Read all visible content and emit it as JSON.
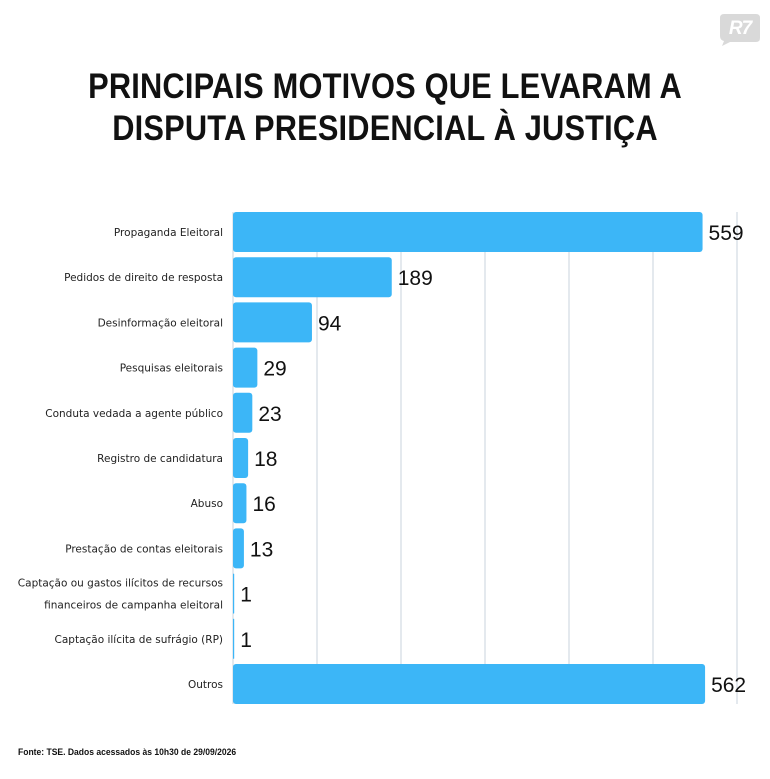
{
  "brand": {
    "logo_text": "R7",
    "logo_color": "#d9d9d9"
  },
  "title": {
    "line1": "PRINCIPAIS MOTIVOS QUE LEVARAM A",
    "line2": "DISPUTA PRESIDENCIAL À JUSTIÇA"
  },
  "source": "Fonte: TSE. Dados acessados às 10h30 de 29/09/2026",
  "colors": {
    "bar": "#3cb6f7",
    "grid": "#c9d3dc",
    "text": "#111111"
  },
  "chart_data": {
    "type": "bar",
    "orientation": "horizontal",
    "categories": [
      [
        "Propaganda Eleitoral"
      ],
      [
        "Pedidos de direito de resposta"
      ],
      [
        "Desinformação eleitoral"
      ],
      [
        "Pesquisas eleitorais"
      ],
      [
        "Conduta vedada a agente público"
      ],
      [
        "Registro de candidatura"
      ],
      [
        "Abuso"
      ],
      [
        "Prestação de contas eleitorais"
      ],
      [
        "Captação ou gastos ilícitos de recursos",
        "financeiros de campanha eleitoral"
      ],
      [
        "Captação ilícita de sufrágio (RP)"
      ],
      [
        "Outros"
      ]
    ],
    "values": [
      559,
      189,
      94,
      29,
      23,
      18,
      16,
      13,
      1,
      1,
      562
    ],
    "xlim": [
      0,
      600
    ],
    "grid": true,
    "legend": "none"
  }
}
